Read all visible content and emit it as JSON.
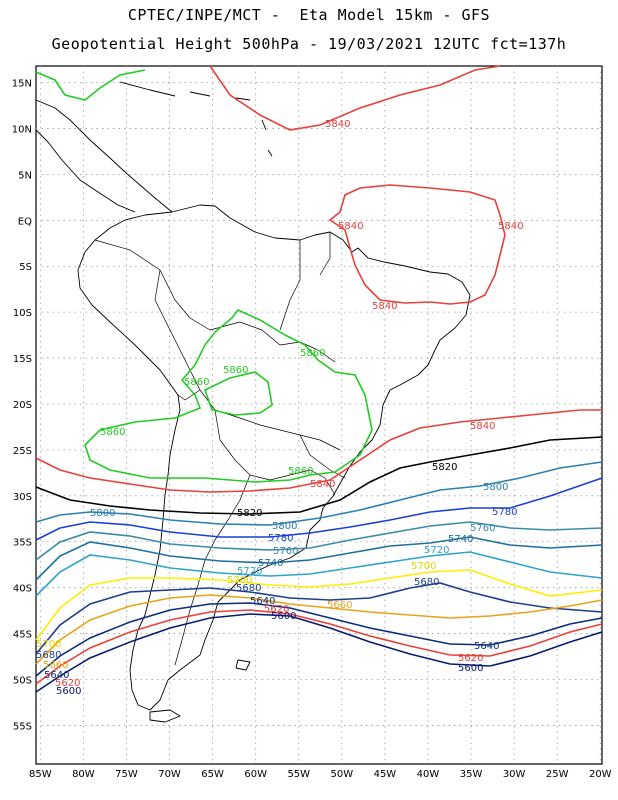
{
  "header": {
    "line1": "CPTEC/INPE/MCT -  Eta Model 15km - GFS",
    "line2": "Geopotential Height 500hPa - 19/03/2021 12UTC fct=137h"
  },
  "map": {
    "lon_range": [
      -85.5,
      -19.8
    ],
    "lat_range": [
      -59.2,
      16.8
    ],
    "lon_ticks": [
      "85W",
      "80W",
      "75W",
      "70W",
      "65W",
      "60W",
      "55W",
      "50W",
      "45W",
      "40W",
      "35W",
      "30W",
      "25W",
      "20W"
    ],
    "lat_ticks": [
      "15N",
      "10N",
      "5N",
      "EQ",
      "5S",
      "10S",
      "15S",
      "20S",
      "25S",
      "30S",
      "35S",
      "40S",
      "45S",
      "50S",
      "55S"
    ],
    "contour_unit": "gpm",
    "colors": {
      "c5600": "#0a1a6e",
      "c5620": "#e8403a",
      "c5640": "#0c2b7a",
      "c5660": "#e8a317",
      "c5680": "#1f3f8a",
      "c5700": "#ffee00",
      "c5720": "#2fa3c8",
      "c5740": "#1f6f9f",
      "c5760": "#3a8aa8",
      "c5780": "#1a3fd8",
      "c5800": "#2e7fb0",
      "c5820": "#000000",
      "c5840": "#e8403a",
      "c5860": "#22cc22"
    },
    "labels": {
      "l5840a": "5840",
      "l5840b": "5840",
      "l5840c": "5840",
      "l5840d": "5840",
      "l5840e": "5840",
      "l5840f": "5840",
      "l5860a": "5860",
      "l5860b": "5860",
      "l5860c": "5860",
      "l5860d": "5860",
      "l5860e": "5860",
      "l5820a": "5820",
      "l5820b": "5820",
      "l5800a": "5800",
      "l5800b": "5800",
      "l5800c": "5800",
      "l5780a": "5780",
      "l5780b": "5780",
      "l5760a": "5760",
      "l5760b": "5760",
      "l5740a": "5740",
      "l5740b": "5740",
      "l5720a": "5720",
      "l5720b": "5720",
      "l5700a": "5700",
      "l5700b": "5700",
      "l5700c": "5700",
      "l5680a": "5680",
      "l5680b": "5680",
      "l5680c": "5680",
      "l5660a": "5660",
      "l5660b": "5660",
      "l5640a": "5640",
      "l5640b": "5640",
      "l5640c": "5640",
      "l5620a": "5620",
      "l5620b": "5620",
      "l5620c": "5620",
      "l5600a": "5600",
      "l5600b": "5600",
      "l5600c": "5600"
    }
  }
}
